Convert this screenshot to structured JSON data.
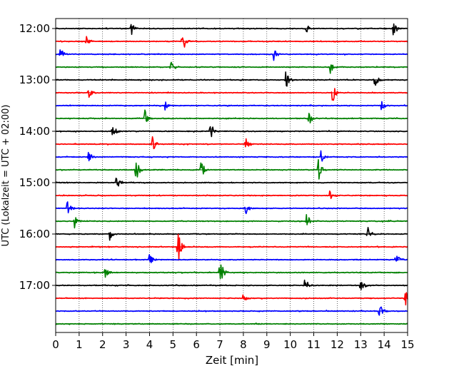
{
  "chart_data": {
    "type": "line",
    "xlabel": "Zeit  [min]",
    "ylabel": "UTC (Lokalzeit = UTC + 02:00)",
    "xlim": [
      0,
      15
    ],
    "x_ticks": [
      "0",
      "1",
      "2",
      "3",
      "4",
      "5",
      "6",
      "7",
      "8",
      "9",
      "10",
      "11",
      "12",
      "13",
      "14",
      "15"
    ],
    "y_ticks": [
      "12:00",
      "13:00",
      "14:00",
      "15:00",
      "16:00",
      "17:00"
    ],
    "grid": "vertical-dotted",
    "trace_interval_min": 15,
    "start_time": "12:00",
    "colors": [
      "#000000",
      "#ff0000",
      "#0000ff",
      "#008000"
    ],
    "traces": [
      {
        "start": "12:00",
        "color": "#000000",
        "events": [
          [
            3.2,
            0.45
          ],
          [
            10.6,
            0.6
          ],
          [
            14.4,
            0.55
          ]
        ]
      },
      {
        "start": "12:15",
        "color": "#ff0000",
        "events": [
          [
            5.4,
            0.75
          ],
          [
            1.3,
            0.45
          ]
        ]
      },
      {
        "start": "12:30",
        "color": "#0000ff",
        "events": [
          [
            0.2,
            0.4
          ],
          [
            9.3,
            0.35
          ]
        ]
      },
      {
        "start": "12:45",
        "color": "#008000",
        "events": [
          [
            4.9,
            0.5
          ],
          [
            11.7,
            0.45
          ]
        ]
      },
      {
        "start": "13:00",
        "color": "#000000",
        "events": [
          [
            9.8,
            0.6
          ],
          [
            13.6,
            0.45
          ]
        ]
      },
      {
        "start": "13:15",
        "color": "#ff0000",
        "events": [
          [
            11.8,
            0.6
          ],
          [
            1.4,
            0.4
          ]
        ]
      },
      {
        "start": "13:30",
        "color": "#0000ff",
        "events": [
          [
            4.6,
            0.4
          ],
          [
            13.9,
            0.4
          ]
        ]
      },
      {
        "start": "13:45",
        "color": "#008000",
        "events": [
          [
            3.8,
            0.45
          ],
          [
            10.8,
            0.4
          ]
        ]
      },
      {
        "start": "14:00",
        "color": "#000000",
        "events": [
          [
            2.4,
            0.55
          ],
          [
            6.6,
            0.55
          ]
        ]
      },
      {
        "start": "14:15",
        "color": "#ff0000",
        "events": [
          [
            4.1,
            0.55
          ],
          [
            8.1,
            0.45
          ]
        ]
      },
      {
        "start": "14:30",
        "color": "#0000ff",
        "events": [
          [
            1.4,
            0.4
          ],
          [
            11.3,
            0.4
          ]
        ]
      },
      {
        "start": "14:45",
        "color": "#008000",
        "events": [
          [
            3.4,
            1.1
          ],
          [
            6.2,
            0.6
          ],
          [
            11.2,
            0.65
          ]
        ]
      },
      {
        "start": "15:00",
        "color": "#000000",
        "events": [
          [
            2.6,
            0.6
          ]
        ]
      },
      {
        "start": "15:15",
        "color": "#ff0000",
        "events": [
          [
            11.7,
            0.45
          ]
        ]
      },
      {
        "start": "15:30",
        "color": "#0000ff",
        "events": [
          [
            0.5,
            0.45
          ],
          [
            8.1,
            0.35
          ]
        ]
      },
      {
        "start": "15:45",
        "color": "#008000",
        "events": [
          [
            10.7,
            0.5
          ],
          [
            0.8,
            0.35
          ]
        ]
      },
      {
        "start": "16:00",
        "color": "#000000",
        "events": [
          [
            13.3,
            0.45
          ],
          [
            2.3,
            0.4
          ]
        ]
      },
      {
        "start": "16:15",
        "color": "#ff0000",
        "events": [
          [
            5.2,
            1.2
          ]
        ]
      },
      {
        "start": "16:30",
        "color": "#0000ff",
        "events": [
          [
            14.5,
            0.45
          ],
          [
            4.0,
            0.35
          ]
        ]
      },
      {
        "start": "16:45",
        "color": "#008000",
        "events": [
          [
            7.0,
            0.95
          ],
          [
            2.1,
            0.35
          ]
        ]
      },
      {
        "start": "17:00",
        "color": "#000000",
        "events": [
          [
            10.6,
            0.6
          ],
          [
            13.0,
            0.45
          ]
        ]
      },
      {
        "start": "17:15",
        "color": "#ff0000",
        "events": [
          [
            14.9,
            0.45
          ],
          [
            8.0,
            0.35
          ]
        ]
      },
      {
        "start": "17:30",
        "color": "#0000ff",
        "events": [
          [
            13.8,
            0.45
          ]
        ]
      },
      {
        "start": "17:45",
        "color": "#008000",
        "events": []
      }
    ]
  }
}
